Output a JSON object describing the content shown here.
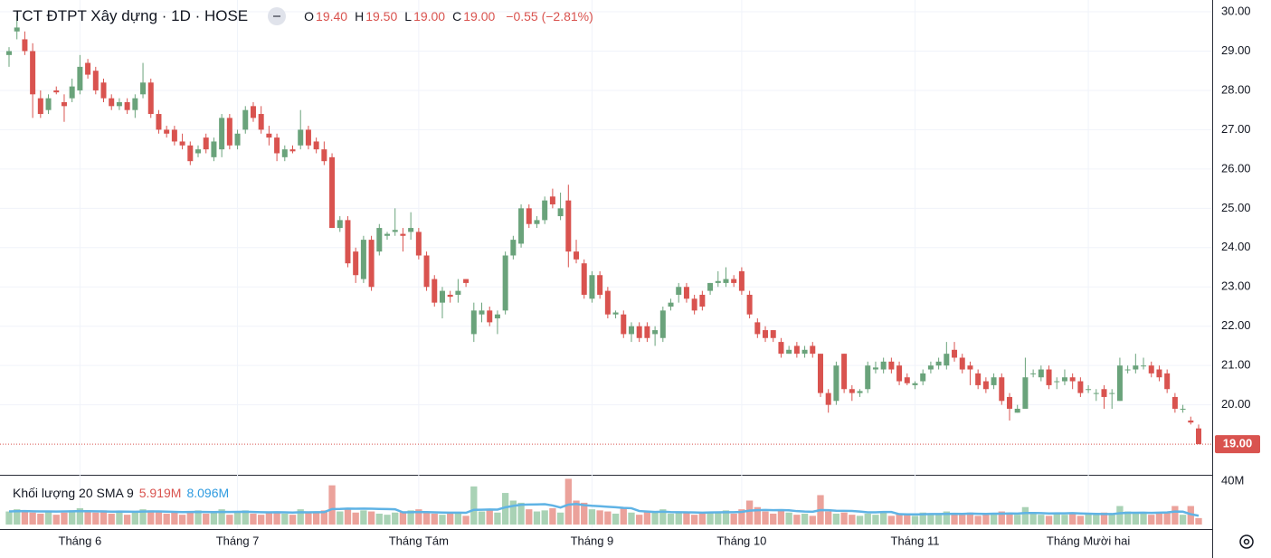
{
  "chart_data": {
    "type": "candlestick",
    "title": "TCT ĐTPT Xây dựng · 1D · HOSE",
    "ohlc_legend": [
      {
        "key": "O",
        "value": "19.40"
      },
      {
        "key": "H",
        "value": "19.50"
      },
      {
        "key": "L",
        "value": "19.00"
      },
      {
        "key": "C",
        "value": "19.00"
      }
    ],
    "change": "−0.55 (−2.81%)",
    "categories": [
      null,
      null,
      null,
      null,
      null,
      null,
      null,
      null,
      null,
      "Tháng 6",
      null,
      null,
      null,
      null,
      null,
      null,
      null,
      null,
      null,
      null,
      null,
      null,
      null,
      null,
      null,
      null,
      null,
      null,
      null,
      "Tháng 7",
      null,
      null,
      null,
      null,
      null,
      null,
      null,
      null,
      null,
      null,
      null,
      null,
      null,
      null,
      null,
      null,
      null,
      null,
      null,
      null,
      null,
      null,
      "Tháng Tám",
      null,
      null,
      null,
      null,
      null,
      null,
      null,
      null,
      null,
      null,
      null,
      null,
      null,
      null,
      null,
      null,
      null,
      null,
      null,
      null,
      null,
      "Tháng 9",
      null,
      null,
      null,
      null,
      null,
      null,
      null,
      null,
      null,
      null,
      null,
      null,
      null,
      null,
      null,
      null,
      null,
      null,
      "Tháng 10",
      null,
      null,
      null,
      null,
      null,
      null,
      null,
      null,
      null,
      null,
      null,
      null,
      null,
      null,
      null,
      null,
      null,
      null,
      null,
      null,
      null,
      "Tháng 11",
      null,
      null,
      null,
      null,
      null,
      null,
      null,
      null,
      null,
      null,
      null,
      null,
      null,
      null,
      null,
      null,
      null,
      null,
      null,
      null,
      null,
      "Tháng Mười hai",
      null,
      null,
      null,
      null,
      null,
      null,
      null,
      null,
      null,
      null,
      null,
      null,
      null,
      null
    ],
    "candles": [
      [
        28.9,
        29.1,
        28.6,
        29.0
      ],
      [
        29.5,
        29.9,
        29.3,
        29.6
      ],
      [
        29.3,
        29.5,
        28.9,
        29.0
      ],
      [
        29.0,
        29.2,
        27.3,
        27.9
      ],
      [
        27.8,
        28.0,
        27.3,
        27.4
      ],
      [
        27.5,
        27.9,
        27.4,
        27.8
      ],
      [
        28.0,
        28.1,
        27.9,
        27.95
      ],
      [
        27.7,
        27.9,
        27.2,
        27.6
      ],
      [
        27.8,
        28.3,
        27.7,
        28.1
      ],
      [
        28.0,
        28.9,
        27.9,
        28.6
      ],
      [
        28.7,
        28.8,
        28.3,
        28.4
      ],
      [
        28.5,
        28.6,
        27.9,
        28.0
      ],
      [
        28.2,
        28.3,
        27.7,
        27.8
      ],
      [
        27.8,
        27.9,
        27.5,
        27.6
      ],
      [
        27.6,
        27.8,
        27.5,
        27.7
      ],
      [
        27.7,
        27.8,
        27.4,
        27.5
      ],
      [
        27.5,
        27.9,
        27.3,
        27.8
      ],
      [
        27.9,
        28.7,
        27.8,
        28.2
      ],
      [
        28.2,
        28.3,
        27.3,
        27.4
      ],
      [
        27.4,
        27.5,
        26.9,
        27.0
      ],
      [
        27.0,
        27.1,
        26.8,
        26.9
      ],
      [
        27.0,
        27.1,
        26.6,
        26.7
      ],
      [
        26.7,
        26.9,
        26.5,
        26.6
      ],
      [
        26.6,
        26.7,
        26.1,
        26.2
      ],
      [
        26.4,
        26.6,
        26.3,
        26.5
      ],
      [
        26.8,
        26.9,
        26.4,
        26.5
      ],
      [
        26.3,
        26.8,
        26.2,
        26.7
      ],
      [
        26.5,
        27.4,
        26.3,
        27.3
      ],
      [
        27.3,
        27.4,
        26.5,
        26.6
      ],
      [
        26.6,
        27.0,
        26.5,
        26.9
      ],
      [
        27.0,
        27.6,
        26.9,
        27.5
      ],
      [
        27.6,
        27.7,
        27.2,
        27.3
      ],
      [
        27.4,
        27.6,
        26.9,
        27.0
      ],
      [
        26.9,
        27.1,
        26.6,
        26.8
      ],
      [
        26.8,
        26.9,
        26.2,
        26.4
      ],
      [
        26.3,
        26.6,
        26.2,
        26.5
      ],
      [
        26.5,
        26.6,
        26.4,
        26.45
      ],
      [
        26.6,
        27.5,
        26.5,
        27.0
      ],
      [
        27.0,
        27.1,
        26.5,
        26.6
      ],
      [
        26.7,
        26.8,
        26.4,
        26.5
      ],
      [
        26.5,
        26.7,
        26.1,
        26.2
      ],
      [
        26.3,
        26.4,
        24.5,
        24.5
      ],
      [
        24.5,
        24.8,
        24.4,
        24.7
      ],
      [
        24.7,
        24.8,
        23.5,
        23.6
      ],
      [
        23.9,
        24.0,
        23.1,
        23.3
      ],
      [
        23.2,
        24.3,
        23.1,
        24.2
      ],
      [
        24.2,
        24.3,
        22.9,
        23.0
      ],
      [
        23.9,
        24.6,
        23.8,
        24.5
      ],
      [
        24.3,
        24.4,
        24.2,
        24.35
      ],
      [
        24.4,
        25.0,
        24.3,
        24.45
      ],
      [
        24.35,
        24.5,
        23.9,
        24.3
      ],
      [
        24.4,
        24.9,
        24.2,
        24.5
      ],
      [
        24.4,
        24.5,
        23.7,
        23.8
      ],
      [
        23.8,
        23.9,
        22.9,
        23.0
      ],
      [
        23.2,
        23.3,
        22.5,
        22.6
      ],
      [
        22.6,
        23.0,
        22.2,
        22.9
      ],
      [
        22.8,
        22.9,
        22.6,
        22.75
      ],
      [
        22.8,
        23.2,
        22.6,
        22.9
      ],
      [
        23.2,
        23.2,
        23.0,
        23.1
      ],
      [
        21.8,
        22.6,
        21.6,
        22.4
      ],
      [
        22.3,
        22.6,
        22.1,
        22.4
      ],
      [
        22.4,
        22.5,
        22.0,
        22.1
      ],
      [
        22.2,
        22.4,
        21.8,
        22.3
      ],
      [
        22.4,
        23.9,
        22.3,
        23.8
      ],
      [
        23.8,
        24.3,
        23.7,
        24.2
      ],
      [
        24.1,
        25.1,
        24.0,
        25.0
      ],
      [
        25.0,
        25.1,
        24.5,
        24.6
      ],
      [
        24.6,
        24.8,
        24.5,
        24.7
      ],
      [
        24.7,
        25.3,
        24.6,
        25.2
      ],
      [
        25.3,
        25.5,
        25.0,
        25.1
      ],
      [
        24.8,
        25.4,
        24.7,
        25.0
      ],
      [
        25.2,
        25.6,
        23.5,
        23.9
      ],
      [
        23.9,
        24.2,
        23.6,
        23.7
      ],
      [
        23.6,
        23.7,
        22.7,
        22.8
      ],
      [
        22.7,
        23.4,
        22.6,
        23.3
      ],
      [
        23.3,
        23.4,
        22.7,
        22.8
      ],
      [
        22.9,
        23.0,
        22.2,
        22.3
      ],
      [
        22.3,
        22.4,
        22.2,
        22.35
      ],
      [
        22.3,
        22.4,
        21.7,
        21.8
      ],
      [
        21.8,
        22.1,
        21.6,
        22.0
      ],
      [
        22.0,
        22.1,
        21.6,
        21.7
      ],
      [
        22.0,
        22.1,
        21.6,
        21.7
      ],
      [
        21.8,
        22.0,
        21.5,
        21.9
      ],
      [
        21.7,
        22.5,
        21.6,
        22.4
      ],
      [
        22.5,
        22.7,
        22.4,
        22.6
      ],
      [
        22.8,
        23.1,
        22.6,
        23.0
      ],
      [
        23.0,
        23.1,
        22.6,
        22.7
      ],
      [
        22.7,
        22.8,
        22.3,
        22.4
      ],
      [
        22.8,
        22.9,
        22.4,
        22.5
      ],
      [
        22.9,
        23.1,
        22.8,
        23.1
      ],
      [
        23.1,
        23.4,
        23.0,
        23.15
      ],
      [
        23.1,
        23.5,
        23.0,
        23.2
      ],
      [
        23.2,
        23.3,
        23.0,
        23.1
      ],
      [
        23.4,
        23.5,
        22.8,
        22.9
      ],
      [
        22.8,
        22.9,
        22.2,
        22.3
      ],
      [
        22.1,
        22.2,
        21.7,
        21.8
      ],
      [
        21.9,
        22.0,
        21.6,
        21.7
      ],
      [
        21.9,
        21.9,
        21.6,
        21.7
      ],
      [
        21.6,
        21.7,
        21.2,
        21.3
      ],
      [
        21.3,
        21.5,
        21.3,
        21.4
      ],
      [
        21.5,
        21.6,
        21.2,
        21.3
      ],
      [
        21.3,
        21.5,
        21.2,
        21.4
      ],
      [
        21.5,
        21.6,
        21.2,
        21.3
      ],
      [
        21.3,
        21.3,
        20.2,
        20.3
      ],
      [
        20.3,
        20.4,
        19.8,
        20.0
      ],
      [
        20.1,
        21.1,
        20.0,
        21.0
      ],
      [
        21.3,
        21.3,
        20.3,
        20.4
      ],
      [
        20.4,
        20.5,
        20.1,
        20.3
      ],
      [
        20.3,
        20.4,
        20.2,
        20.35
      ],
      [
        20.4,
        21.1,
        20.3,
        21.0
      ],
      [
        20.9,
        21.1,
        20.8,
        20.95
      ],
      [
        20.9,
        21.2,
        20.8,
        21.1
      ],
      [
        21.1,
        21.2,
        20.8,
        20.9
      ],
      [
        21.0,
        21.1,
        20.5,
        20.6
      ],
      [
        20.7,
        20.8,
        20.5,
        20.55
      ],
      [
        20.5,
        20.6,
        20.4,
        20.55
      ],
      [
        20.6,
        20.9,
        20.5,
        20.8
      ],
      [
        20.9,
        21.1,
        20.8,
        21.0
      ],
      [
        21.0,
        21.2,
        20.9,
        21.1
      ],
      [
        21.0,
        21.6,
        20.9,
        21.3
      ],
      [
        21.4,
        21.6,
        21.1,
        21.2
      ],
      [
        21.2,
        21.3,
        20.8,
        20.9
      ],
      [
        21.0,
        21.1,
        20.5,
        20.9
      ],
      [
        20.8,
        20.9,
        20.4,
        20.5
      ],
      [
        20.6,
        20.7,
        20.3,
        20.4
      ],
      [
        20.5,
        20.8,
        20.4,
        20.7
      ],
      [
        20.7,
        20.8,
        20.0,
        20.1
      ],
      [
        20.2,
        20.3,
        19.6,
        19.9
      ],
      [
        19.8,
        20.0,
        19.8,
        19.9
      ],
      [
        19.9,
        21.2,
        19.9,
        20.7
      ],
      [
        20.8,
        20.9,
        20.7,
        20.8
      ],
      [
        20.7,
        21.0,
        20.6,
        20.9
      ],
      [
        20.9,
        21.0,
        20.4,
        20.5
      ],
      [
        20.6,
        20.7,
        20.4,
        20.6
      ],
      [
        20.6,
        20.9,
        20.5,
        20.7
      ],
      [
        20.7,
        20.8,
        20.4,
        20.6
      ],
      [
        20.6,
        20.7,
        20.2,
        20.3
      ],
      [
        20.4,
        20.5,
        20.3,
        20.4
      ],
      [
        20.3,
        20.4,
        20.1,
        20.3
      ],
      [
        20.4,
        20.5,
        19.9,
        20.2
      ],
      [
        20.3,
        20.4,
        19.9,
        20.3
      ],
      [
        20.1,
        21.2,
        20.1,
        21.0
      ],
      [
        20.9,
        21.0,
        20.8,
        20.9
      ],
      [
        20.9,
        21.3,
        20.8,
        21.0
      ],
      [
        21.0,
        21.2,
        20.9,
        21.0
      ],
      [
        21.0,
        21.1,
        20.7,
        20.8
      ],
      [
        20.9,
        21.0,
        20.6,
        20.7
      ],
      [
        20.8,
        20.9,
        20.3,
        20.4
      ],
      [
        20.2,
        20.3,
        19.8,
        19.9
      ],
      [
        19.9,
        20.0,
        19.8,
        19.9
      ],
      [
        19.6,
        19.7,
        19.5,
        19.55
      ],
      [
        19.4,
        19.5,
        19.0,
        19.0
      ]
    ],
    "up_color": "#6aa37b",
    "down_color": "#d9534f",
    "ylim": [
      18.22,
      30.3
    ],
    "yticks": [
      {
        "value": 20,
        "label": "20.00"
      },
      {
        "value": 21,
        "label": "21.00"
      },
      {
        "value": 22,
        "label": "22.00"
      },
      {
        "value": 23,
        "label": "23.00"
      },
      {
        "value": 24,
        "label": "24.00"
      },
      {
        "value": 25,
        "label": "25.00"
      },
      {
        "value": 26,
        "label": "26.00"
      },
      {
        "value": 27,
        "label": "27.00"
      },
      {
        "value": 28,
        "label": "28.00"
      },
      {
        "value": 29,
        "label": "29.00"
      },
      {
        "value": 30,
        "label": "30.00"
      }
    ],
    "last_price": {
      "value": 19,
      "label": "19.00"
    },
    "volume_legend": "Khối lượng 20 SMA 9",
    "volume": [
      12,
      14,
      13,
      11,
      10,
      12,
      9,
      11,
      13,
      15,
      12,
      11,
      13,
      10,
      12,
      9,
      11,
      14,
      13,
      12,
      10,
      11,
      9,
      12,
      13,
      10,
      11,
      14,
      9,
      12,
      13,
      10,
      9,
      11,
      12,
      10,
      9,
      14,
      11,
      12,
      13,
      36,
      12,
      14,
      11,
      13,
      12,
      10,
      9,
      11,
      12,
      13,
      14,
      11,
      10,
      9,
      10,
      11,
      8,
      35,
      12,
      13,
      11,
      29,
      22,
      20,
      14,
      12,
      13,
      15,
      11,
      42,
      22,
      20,
      14,
      13,
      12,
      10,
      15,
      11,
      9,
      12,
      11,
      14,
      10,
      12,
      11,
      9,
      10,
      12,
      11,
      13,
      10,
      14,
      22,
      16,
      12,
      10,
      13,
      11,
      9,
      10,
      8,
      27,
      12,
      10,
      11,
      9,
      8,
      10,
      9,
      11,
      8,
      10,
      9,
      8,
      11,
      10,
      9,
      12,
      10,
      9,
      11,
      8,
      9,
      10,
      12,
      11,
      9,
      16,
      10,
      9,
      8,
      10,
      9,
      11,
      8,
      10,
      9,
      11,
      10,
      17,
      12,
      11,
      10,
      9,
      11,
      12,
      17,
      9,
      17,
      5.919
    ],
    "volume_label": "5.919M",
    "volume_sma": [
      12,
      12.2,
      12.3,
      12.1,
      12.0,
      12.0,
      11.9,
      12.0,
      12.1,
      12.3,
      12.2,
      12.1,
      12.0,
      11.8,
      11.9,
      11.8,
      11.7,
      11.9,
      12.0,
      12.0,
      11.8,
      11.6,
      11.4,
      11.5,
      11.6,
      11.5,
      11.4,
      11.6,
      11.5,
      11.6,
      11.7,
      11.5,
      11.3,
      11.2,
      11.3,
      11.2,
      11.0,
      11.3,
      11.2,
      11.3,
      11.4,
      14.2,
      14.3,
      14.6,
      14.5,
      14.6,
      14.5,
      14.3,
      14.2,
      14.0,
      11.2,
      11.3,
      11.5,
      11.4,
      11.2,
      11.0,
      10.9,
      10.9,
      10.8,
      13.5,
      13.6,
      13.8,
      13.7,
      15.8,
      17.1,
      18.2,
      18.4,
      18.5,
      18.7,
      17.5,
      15.6,
      18.3,
      18.9,
      17.8,
      17.2,
      16.8,
      16.3,
      15.9,
      15.3,
      15.0,
      12.4,
      11.9,
      11.5,
      11.8,
      11.4,
      11.3,
      11.2,
      11.1,
      10.9,
      11.1,
      11.2,
      11.3,
      11.3,
      11.6,
      12.8,
      13.2,
      13.4,
      13.2,
      13.3,
      13.1,
      12.3,
      11.9,
      11.7,
      13.3,
      13.2,
      12.7,
      12.6,
      12.5,
      11.9,
      11.2,
      11.2,
      11.5,
      11.5,
      9.5,
      9.3,
      9.3,
      9.4,
      9.7,
      9.6,
      9.8,
      9.9,
      9.8,
      10.1,
      9.9,
      9.8,
      10.0,
      10.0,
      10.2,
      10.1,
      10.6,
      10.6,
      10.5,
      10.2,
      10.3,
      10.3,
      10.5,
      10.2,
      10.0,
      9.8,
      9.7,
      9.6,
      10.4,
      10.8,
      10.8,
      10.9,
      10.7,
      10.9,
      11.1,
      11.9,
      11.8,
      9.5,
      8.096
    ],
    "sma_label": "8.096M",
    "sma_color": "#5fb3e5",
    "volume_up_color": "#a9d2b5",
    "volume_down_color": "#eba29b",
    "volume_ylim": [
      0,
      44
    ],
    "volume_yticks": [
      {
        "value": 40,
        "label": "40M"
      }
    ],
    "grid": true
  }
}
